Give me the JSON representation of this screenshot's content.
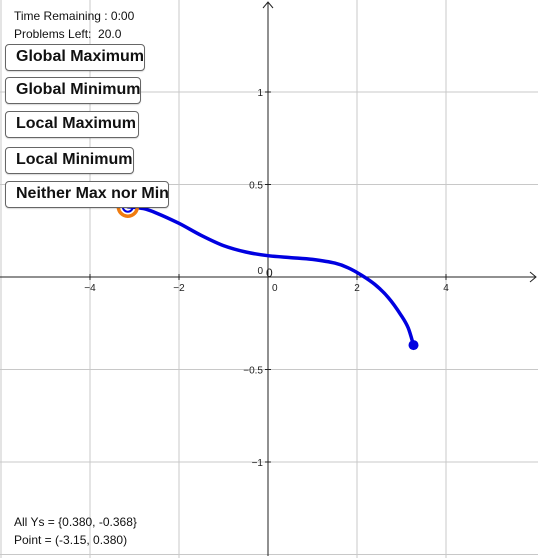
{
  "status": {
    "time_remaining": "Time Remaining : 0:00",
    "problems_left": "Problems Left:  20.0"
  },
  "buttons": {
    "global_max": "Global Maximum",
    "global_min": "Global Minimum",
    "local_max": "Local Maximum",
    "local_min": "Local Minimum",
    "neither": "Neither Max nor Min"
  },
  "graph": {
    "x_ticks": [
      {
        "label": "−4",
        "v": -4
      },
      {
        "label": "−2",
        "v": -2
      },
      {
        "label": "0",
        "v": 0
      },
      {
        "label": "2",
        "v": 2
      },
      {
        "label": "4",
        "v": 4
      }
    ],
    "y_ticks": [
      {
        "label": "1",
        "v": 1
      },
      {
        "label": "0.5",
        "v": 0.5
      },
      {
        "label": "0",
        "v": 0
      },
      {
        "label": "−0.5",
        "v": -0.5
      },
      {
        "label": "−1",
        "v": -1
      }
    ],
    "origin_label": "0",
    "curve_color": "#0000e0",
    "highlight_color": "#f07c10",
    "curve_points": [
      [
        -3.15,
        0.38
      ],
      [
        -2.8,
        0.37
      ],
      [
        -2.5,
        0.345
      ],
      [
        -2.0,
        0.29
      ],
      [
        -1.5,
        0.225
      ],
      [
        -1.0,
        0.17
      ],
      [
        -0.5,
        0.135
      ],
      [
        0.0,
        0.115
      ],
      [
        0.5,
        0.105
      ],
      [
        1.0,
        0.095
      ],
      [
        1.5,
        0.075
      ],
      [
        1.8,
        0.05
      ],
      [
        2.1,
        0.01
      ],
      [
        2.4,
        -0.04
      ],
      [
        2.7,
        -0.11
      ],
      [
        3.0,
        -0.21
      ],
      [
        3.15,
        -0.275
      ],
      [
        3.27,
        -0.368
      ]
    ],
    "start_point": [
      -3.15,
      0.38
    ],
    "end_point": [
      3.27,
      -0.368
    ]
  },
  "footer": {
    "all_ys": "All Ys = {0.380, -0.368}",
    "point": "Point = (-3.15, 0.380)"
  }
}
